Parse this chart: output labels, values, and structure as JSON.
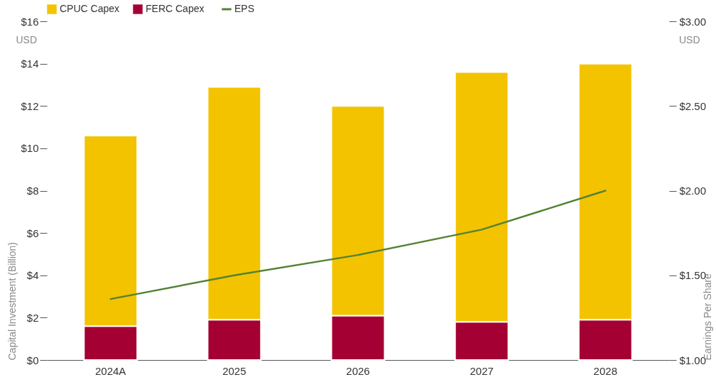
{
  "chart_data": {
    "type": "bar",
    "stacked": true,
    "categories": [
      "2024A",
      "2025",
      "2026",
      "2027",
      "2028"
    ],
    "series": [
      {
        "name": "FERC Capex",
        "color": "#a50034",
        "values": [
          1.6,
          1.9,
          2.1,
          1.8,
          1.9
        ]
      },
      {
        "name": "CPUC Capex",
        "color": "#f3c300",
        "values": [
          9.0,
          11.0,
          9.9,
          11.8,
          12.1
        ]
      },
      {
        "name": "EPS",
        "type": "line",
        "axis": "y2",
        "color": "#538234",
        "values": [
          1.36,
          1.5,
          1.62,
          1.77,
          2.0
        ]
      }
    ],
    "ylabel": "Capital Investment (Billion)",
    "y2label": "Earnings Per Share",
    "ylim": [
      0,
      16
    ],
    "yticks": [
      {
        "value": 0,
        "label": "$0"
      },
      {
        "value": 2,
        "label": "$2"
      },
      {
        "value": 4,
        "label": "$4"
      },
      {
        "value": 6,
        "label": "$6"
      },
      {
        "value": 8,
        "label": "$8"
      },
      {
        "value": 10,
        "label": "$10"
      },
      {
        "value": 12,
        "label": "$12"
      },
      {
        "value": 14,
        "label": "$14"
      },
      {
        "value": 16,
        "label": "$16"
      }
    ],
    "y2lim": [
      1,
      3
    ],
    "y2ticks": [
      {
        "value": 1,
        "label": "$1.00"
      },
      {
        "value": 1.5,
        "label": "$1.50"
      },
      {
        "value": 2,
        "label": "$2.00"
      },
      {
        "value": 2.5,
        "label": "$2.50"
      },
      {
        "value": 3,
        "label": "$3.00"
      }
    ],
    "annotations": [
      "USD",
      "USD"
    ],
    "legend": "top left",
    "grid": false
  }
}
